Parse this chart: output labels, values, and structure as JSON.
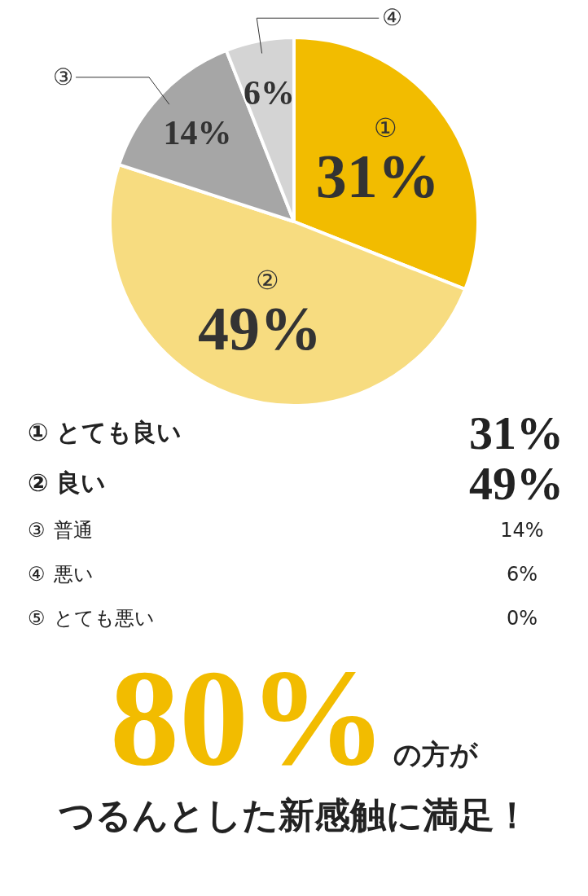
{
  "chart_data": {
    "type": "pie",
    "categories": [
      "①",
      "②",
      "③",
      "④",
      "⑤"
    ],
    "values": [
      31,
      49,
      14,
      6,
      0
    ],
    "value_labels": [
      "31%",
      "49%",
      "14%",
      "6%",
      "0%"
    ],
    "colors": [
      "#f2bc00",
      "#f7dc80",
      "#a6a6a6",
      "#d4d4d4",
      "#eeeeee"
    ],
    "legend": false,
    "annotations": [
      "とても良い",
      "良い",
      "普通",
      "悪い",
      "とても悪い",
      "80%",
      "の方が",
      "つるんとした新感触に満足！"
    ]
  }
}
